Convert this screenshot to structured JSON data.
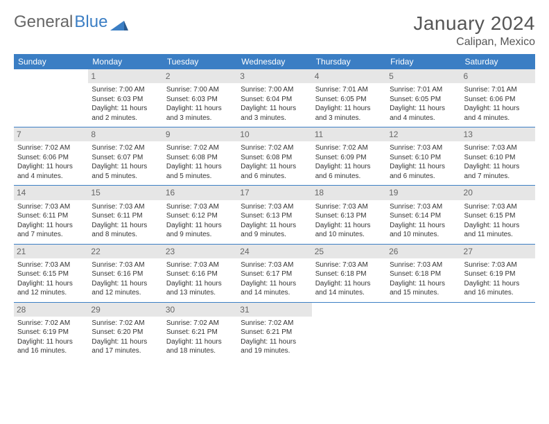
{
  "brand": {
    "general": "General",
    "blue": "Blue"
  },
  "title": "January 2024",
  "location": "Calipan, Mexico",
  "colors": {
    "accent": "#3b7ec4",
    "header_bg": "#3b7ec4",
    "daynum_bg": "#e6e6e6",
    "text": "#333333"
  },
  "day_headers": [
    "Sunday",
    "Monday",
    "Tuesday",
    "Wednesday",
    "Thursday",
    "Friday",
    "Saturday"
  ],
  "weeks": [
    [
      null,
      {
        "n": "1",
        "sr": "Sunrise: 7:00 AM",
        "ss": "Sunset: 6:03 PM",
        "d1": "Daylight: 11 hours",
        "d2": "and 2 minutes."
      },
      {
        "n": "2",
        "sr": "Sunrise: 7:00 AM",
        "ss": "Sunset: 6:03 PM",
        "d1": "Daylight: 11 hours",
        "d2": "and 3 minutes."
      },
      {
        "n": "3",
        "sr": "Sunrise: 7:00 AM",
        "ss": "Sunset: 6:04 PM",
        "d1": "Daylight: 11 hours",
        "d2": "and 3 minutes."
      },
      {
        "n": "4",
        "sr": "Sunrise: 7:01 AM",
        "ss": "Sunset: 6:05 PM",
        "d1": "Daylight: 11 hours",
        "d2": "and 3 minutes."
      },
      {
        "n": "5",
        "sr": "Sunrise: 7:01 AM",
        "ss": "Sunset: 6:05 PM",
        "d1": "Daylight: 11 hours",
        "d2": "and 4 minutes."
      },
      {
        "n": "6",
        "sr": "Sunrise: 7:01 AM",
        "ss": "Sunset: 6:06 PM",
        "d1": "Daylight: 11 hours",
        "d2": "and 4 minutes."
      }
    ],
    [
      {
        "n": "7",
        "sr": "Sunrise: 7:02 AM",
        "ss": "Sunset: 6:06 PM",
        "d1": "Daylight: 11 hours",
        "d2": "and 4 minutes."
      },
      {
        "n": "8",
        "sr": "Sunrise: 7:02 AM",
        "ss": "Sunset: 6:07 PM",
        "d1": "Daylight: 11 hours",
        "d2": "and 5 minutes."
      },
      {
        "n": "9",
        "sr": "Sunrise: 7:02 AM",
        "ss": "Sunset: 6:08 PM",
        "d1": "Daylight: 11 hours",
        "d2": "and 5 minutes."
      },
      {
        "n": "10",
        "sr": "Sunrise: 7:02 AM",
        "ss": "Sunset: 6:08 PM",
        "d1": "Daylight: 11 hours",
        "d2": "and 6 minutes."
      },
      {
        "n": "11",
        "sr": "Sunrise: 7:02 AM",
        "ss": "Sunset: 6:09 PM",
        "d1": "Daylight: 11 hours",
        "d2": "and 6 minutes."
      },
      {
        "n": "12",
        "sr": "Sunrise: 7:03 AM",
        "ss": "Sunset: 6:10 PM",
        "d1": "Daylight: 11 hours",
        "d2": "and 6 minutes."
      },
      {
        "n": "13",
        "sr": "Sunrise: 7:03 AM",
        "ss": "Sunset: 6:10 PM",
        "d1": "Daylight: 11 hours",
        "d2": "and 7 minutes."
      }
    ],
    [
      {
        "n": "14",
        "sr": "Sunrise: 7:03 AM",
        "ss": "Sunset: 6:11 PM",
        "d1": "Daylight: 11 hours",
        "d2": "and 7 minutes."
      },
      {
        "n": "15",
        "sr": "Sunrise: 7:03 AM",
        "ss": "Sunset: 6:11 PM",
        "d1": "Daylight: 11 hours",
        "d2": "and 8 minutes."
      },
      {
        "n": "16",
        "sr": "Sunrise: 7:03 AM",
        "ss": "Sunset: 6:12 PM",
        "d1": "Daylight: 11 hours",
        "d2": "and 9 minutes."
      },
      {
        "n": "17",
        "sr": "Sunrise: 7:03 AM",
        "ss": "Sunset: 6:13 PM",
        "d1": "Daylight: 11 hours",
        "d2": "and 9 minutes."
      },
      {
        "n": "18",
        "sr": "Sunrise: 7:03 AM",
        "ss": "Sunset: 6:13 PM",
        "d1": "Daylight: 11 hours",
        "d2": "and 10 minutes."
      },
      {
        "n": "19",
        "sr": "Sunrise: 7:03 AM",
        "ss": "Sunset: 6:14 PM",
        "d1": "Daylight: 11 hours",
        "d2": "and 10 minutes."
      },
      {
        "n": "20",
        "sr": "Sunrise: 7:03 AM",
        "ss": "Sunset: 6:15 PM",
        "d1": "Daylight: 11 hours",
        "d2": "and 11 minutes."
      }
    ],
    [
      {
        "n": "21",
        "sr": "Sunrise: 7:03 AM",
        "ss": "Sunset: 6:15 PM",
        "d1": "Daylight: 11 hours",
        "d2": "and 12 minutes."
      },
      {
        "n": "22",
        "sr": "Sunrise: 7:03 AM",
        "ss": "Sunset: 6:16 PM",
        "d1": "Daylight: 11 hours",
        "d2": "and 12 minutes."
      },
      {
        "n": "23",
        "sr": "Sunrise: 7:03 AM",
        "ss": "Sunset: 6:16 PM",
        "d1": "Daylight: 11 hours",
        "d2": "and 13 minutes."
      },
      {
        "n": "24",
        "sr": "Sunrise: 7:03 AM",
        "ss": "Sunset: 6:17 PM",
        "d1": "Daylight: 11 hours",
        "d2": "and 14 minutes."
      },
      {
        "n": "25",
        "sr": "Sunrise: 7:03 AM",
        "ss": "Sunset: 6:18 PM",
        "d1": "Daylight: 11 hours",
        "d2": "and 14 minutes."
      },
      {
        "n": "26",
        "sr": "Sunrise: 7:03 AM",
        "ss": "Sunset: 6:18 PM",
        "d1": "Daylight: 11 hours",
        "d2": "and 15 minutes."
      },
      {
        "n": "27",
        "sr": "Sunrise: 7:03 AM",
        "ss": "Sunset: 6:19 PM",
        "d1": "Daylight: 11 hours",
        "d2": "and 16 minutes."
      }
    ],
    [
      {
        "n": "28",
        "sr": "Sunrise: 7:02 AM",
        "ss": "Sunset: 6:19 PM",
        "d1": "Daylight: 11 hours",
        "d2": "and 16 minutes."
      },
      {
        "n": "29",
        "sr": "Sunrise: 7:02 AM",
        "ss": "Sunset: 6:20 PM",
        "d1": "Daylight: 11 hours",
        "d2": "and 17 minutes."
      },
      {
        "n": "30",
        "sr": "Sunrise: 7:02 AM",
        "ss": "Sunset: 6:21 PM",
        "d1": "Daylight: 11 hours",
        "d2": "and 18 minutes."
      },
      {
        "n": "31",
        "sr": "Sunrise: 7:02 AM",
        "ss": "Sunset: 6:21 PM",
        "d1": "Daylight: 11 hours",
        "d2": "and 19 minutes."
      },
      null,
      null,
      null
    ]
  ]
}
